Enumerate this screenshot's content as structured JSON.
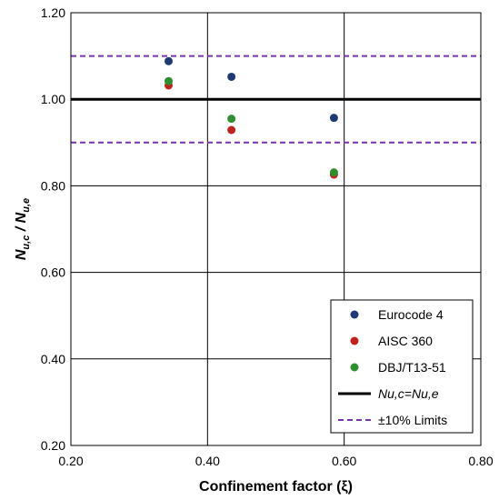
{
  "chart_data": {
    "type": "scatter",
    "xlabel": "Confinement factor (ξ)",
    "ylabel_main": "N",
    "ylabel_sub1": "u,c",
    "ylabel_sep": " / ",
    "ylabel_main2": "N",
    "ylabel_sub2": "u,e",
    "xlim": [
      0.2,
      0.8
    ],
    "ylim": [
      0.2,
      1.2
    ],
    "xticks": [
      0.2,
      0.4,
      0.6,
      0.8
    ],
    "yticks": [
      0.2,
      0.4,
      0.6,
      0.8,
      1.0,
      1.2
    ],
    "xtick_labels": [
      "0.20",
      "0.40",
      "0.60",
      "0.80"
    ],
    "ytick_labels": [
      "0.20",
      "0.40",
      "0.60",
      "0.80",
      "1.00",
      "1.20"
    ],
    "grid": true,
    "legend_position": "bottom-right",
    "series": [
      {
        "name": "Eurocode 4",
        "color": "#1f3a73",
        "marker": "circle",
        "x": [
          0.343,
          0.435,
          0.585
        ],
        "y": [
          1.088,
          1.052,
          0.957
        ]
      },
      {
        "name": "AISC 360",
        "color": "#c0231e",
        "marker": "circle",
        "x": [
          0.343,
          0.435,
          0.585
        ],
        "y": [
          1.032,
          0.929,
          0.826
        ]
      },
      {
        "name": "DBJ/T13-51",
        "color": "#2f8f2f",
        "marker": "circle",
        "x": [
          0.343,
          0.435,
          0.585
        ],
        "y": [
          1.042,
          0.955,
          0.831
        ]
      }
    ],
    "reference_lines": [
      {
        "name": "Nu,c=Nu,e",
        "color": "#000000",
        "style": "solid",
        "y": [
          1.0
        ]
      },
      {
        "name": "±10% Limits",
        "color": "#7a35a8",
        "style": "dashed",
        "y": [
          1.1,
          0.9
        ]
      }
    ]
  }
}
